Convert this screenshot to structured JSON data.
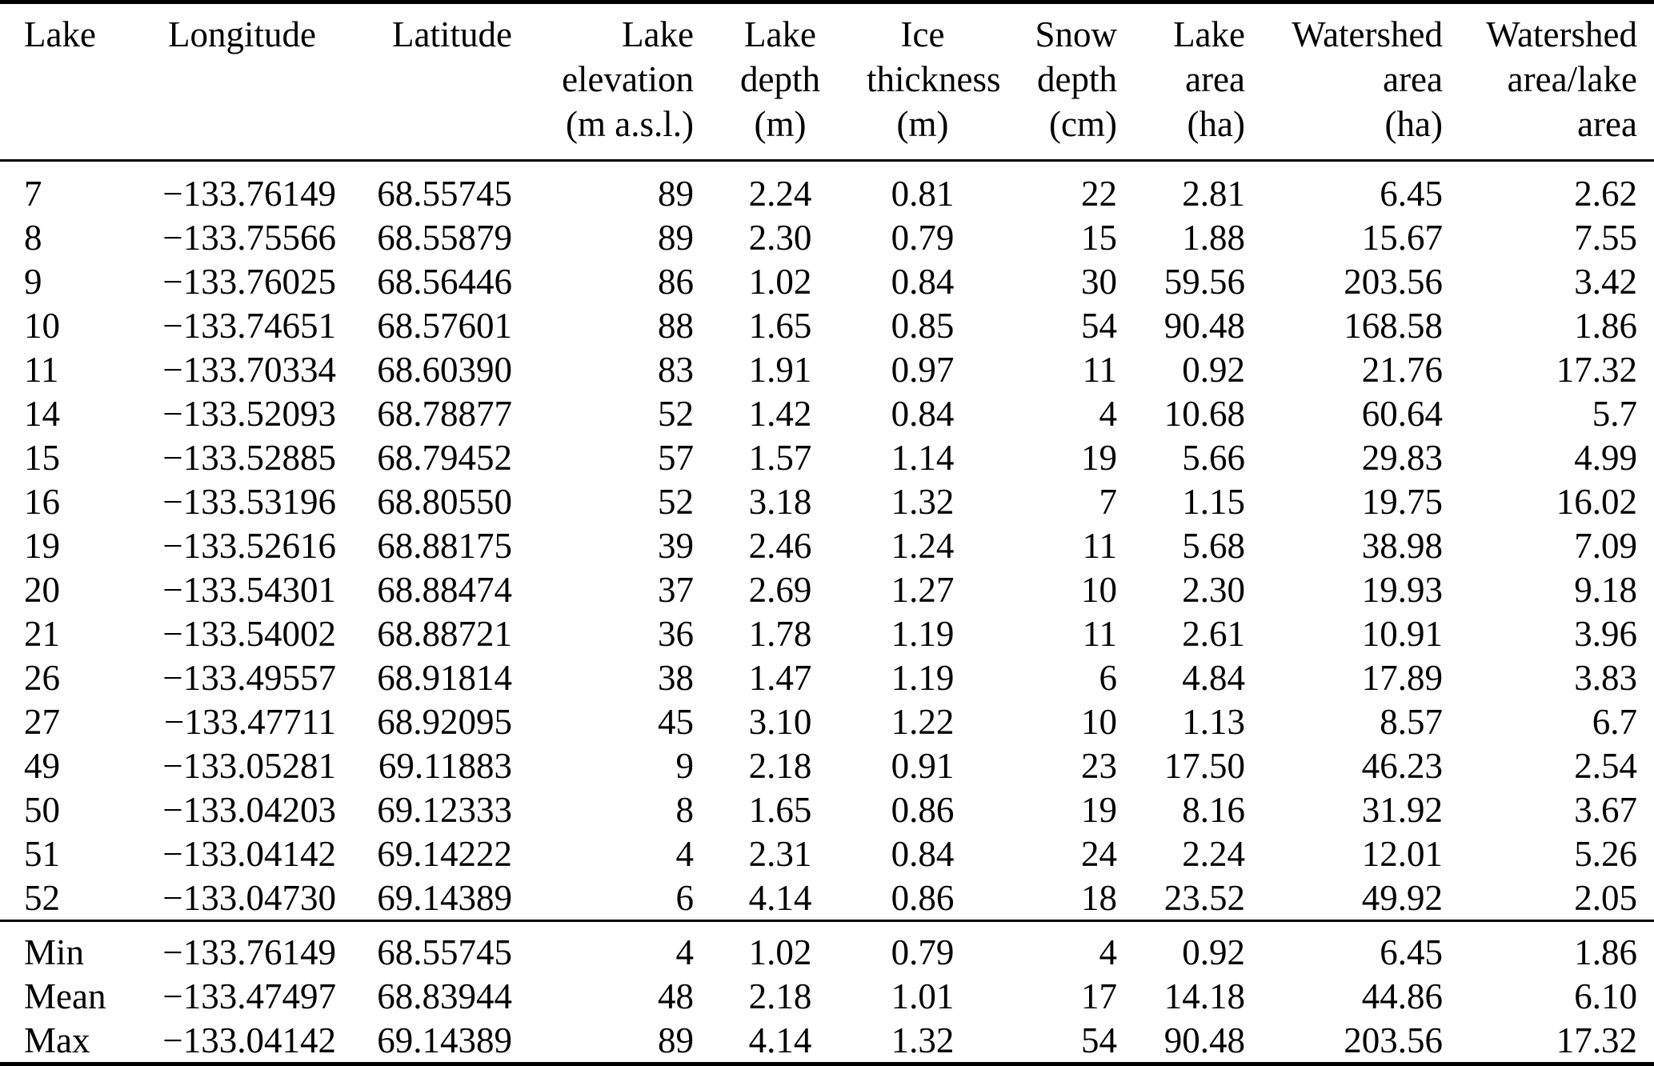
{
  "chart_data": {
    "type": "table",
    "columns": [
      {
        "label_lines": [
          "Lake"
        ]
      },
      {
        "label_lines": [
          "Longitude"
        ]
      },
      {
        "label_lines": [
          "Latitude"
        ]
      },
      {
        "label_lines": [
          "Lake",
          "elevation",
          "(m a.s.l.)"
        ]
      },
      {
        "label_lines": [
          "Lake",
          "depth",
          "(m)"
        ]
      },
      {
        "label_lines": [
          "Ice",
          "thickness",
          "(m)"
        ]
      },
      {
        "label_lines": [
          "Snow",
          "depth",
          "(cm)"
        ]
      },
      {
        "label_lines": [
          "Lake",
          "area",
          "(ha)"
        ]
      },
      {
        "label_lines": [
          "Watershed",
          "area",
          "(ha)"
        ]
      },
      {
        "label_lines": [
          "Watershed",
          "area/lake",
          "area"
        ]
      }
    ],
    "rows": [
      [
        "7",
        "−133.76149",
        "68.55745",
        "89",
        "2.24",
        "0.81",
        "22",
        "2.81",
        "6.45",
        "2.62"
      ],
      [
        "8",
        "−133.75566",
        "68.55879",
        "89",
        "2.30",
        "0.79",
        "15",
        "1.88",
        "15.67",
        "7.55"
      ],
      [
        "9",
        "−133.76025",
        "68.56446",
        "86",
        "1.02",
        "0.84",
        "30",
        "59.56",
        "203.56",
        "3.42"
      ],
      [
        "10",
        "−133.74651",
        "68.57601",
        "88",
        "1.65",
        "0.85",
        "54",
        "90.48",
        "168.58",
        "1.86"
      ],
      [
        "11",
        "−133.70334",
        "68.60390",
        "83",
        "1.91",
        "0.97",
        "11",
        "0.92",
        "21.76",
        "17.32"
      ],
      [
        "14",
        "−133.52093",
        "68.78877",
        "52",
        "1.42",
        "0.84",
        "4",
        "10.68",
        "60.64",
        "5.7"
      ],
      [
        "15",
        "−133.52885",
        "68.79452",
        "57",
        "1.57",
        "1.14",
        "19",
        "5.66",
        "29.83",
        "4.99"
      ],
      [
        "16",
        "−133.53196",
        "68.80550",
        "52",
        "3.18",
        "1.32",
        "7",
        "1.15",
        "19.75",
        "16.02"
      ],
      [
        "19",
        "−133.52616",
        "68.88175",
        "39",
        "2.46",
        "1.24",
        "11",
        "5.68",
        "38.98",
        "7.09"
      ],
      [
        "20",
        "−133.54301",
        "68.88474",
        "37",
        "2.69",
        "1.27",
        "10",
        "2.30",
        "19.93",
        "9.18"
      ],
      [
        "21",
        "−133.54002",
        "68.88721",
        "36",
        "1.78",
        "1.19",
        "11",
        "2.61",
        "10.91",
        "3.96"
      ],
      [
        "26",
        "−133.49557",
        "68.91814",
        "38",
        "1.47",
        "1.19",
        "6",
        "4.84",
        "17.89",
        "3.83"
      ],
      [
        "27",
        "−133.47711",
        "68.92095",
        "45",
        "3.10",
        "1.22",
        "10",
        "1.13",
        "8.57",
        "6.7"
      ],
      [
        "49",
        "−133.05281",
        "69.11883",
        "9",
        "2.18",
        "0.91",
        "23",
        "17.50",
        "46.23",
        "2.54"
      ],
      [
        "50",
        "−133.04203",
        "69.12333",
        "8",
        "1.65",
        "0.86",
        "19",
        "8.16",
        "31.92",
        "3.67"
      ],
      [
        "51",
        "−133.04142",
        "69.14222",
        "4",
        "2.31",
        "0.84",
        "24",
        "2.24",
        "12.01",
        "5.26"
      ],
      [
        "52",
        "−133.04730",
        "69.14389",
        "6",
        "4.14",
        "0.86",
        "18",
        "23.52",
        "49.92",
        "2.05"
      ]
    ],
    "summary_rows": [
      [
        "Min",
        "−133.76149",
        "68.55745",
        "4",
        "1.02",
        "0.79",
        "4",
        "0.92",
        "6.45",
        "1.86"
      ],
      [
        "Mean",
        "−133.47497",
        "68.83944",
        "48",
        "2.18",
        "1.01",
        "17",
        "14.18",
        "44.86",
        "6.10"
      ],
      [
        "Max",
        "−133.04142",
        "69.14389",
        "89",
        "4.14",
        "1.32",
        "54",
        "90.48",
        "203.56",
        "17.32"
      ]
    ]
  }
}
